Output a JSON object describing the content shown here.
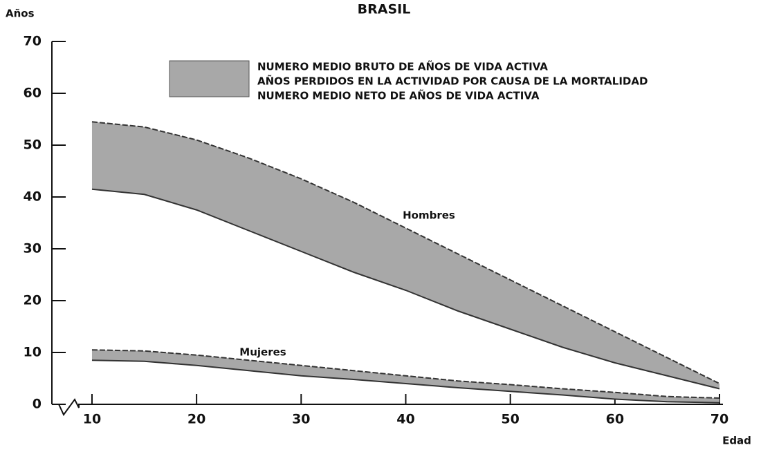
{
  "chart_data": {
    "type": "band",
    "title": "BRASIL",
    "y_label": "Años",
    "x_label": "Edad",
    "legend": [
      "NUMERO MEDIO BRUTO DE AÑOS DE VIDA ACTIVA",
      "AÑOS PERDIDOS EN LA ACTIVIDAD POR CAUSA DE LA MORTALIDAD",
      "NUMERO MEDIO NETO DE AÑOS DE VIDA ACTIVA"
    ],
    "color": "#a8a8a8",
    "x": [
      10,
      15,
      20,
      25,
      30,
      35,
      40,
      45,
      50,
      55,
      60,
      65,
      70
    ],
    "series": [
      {
        "name": "Hombres",
        "upper": [
          54.5,
          53.5,
          51,
          47.5,
          43.5,
          39,
          34,
          29,
          24,
          19,
          14,
          9,
          4
        ],
        "lower": [
          41.5,
          40.5,
          37.5,
          33.5,
          29.5,
          25.5,
          22,
          18,
          14.5,
          11,
          8,
          5.5,
          3
        ]
      },
      {
        "name": "Mujeres",
        "upper": [
          10.5,
          10.3,
          9.5,
          8.5,
          7.5,
          6.5,
          5.5,
          4.5,
          3.8,
          3,
          2.3,
          1.5,
          1.2
        ],
        "lower": [
          8.5,
          8.3,
          7.5,
          6.5,
          5.5,
          4.8,
          4,
          3.2,
          2.5,
          1.8,
          1,
          0.5,
          0.3
        ]
      }
    ],
    "xlim": [
      6,
      70
    ],
    "xticks": [
      10,
      20,
      30,
      40,
      50,
      60,
      70
    ],
    "ylim": [
      0,
      70
    ],
    "yticks": [
      0,
      10,
      20,
      30,
      40,
      50,
      60,
      70
    ]
  }
}
